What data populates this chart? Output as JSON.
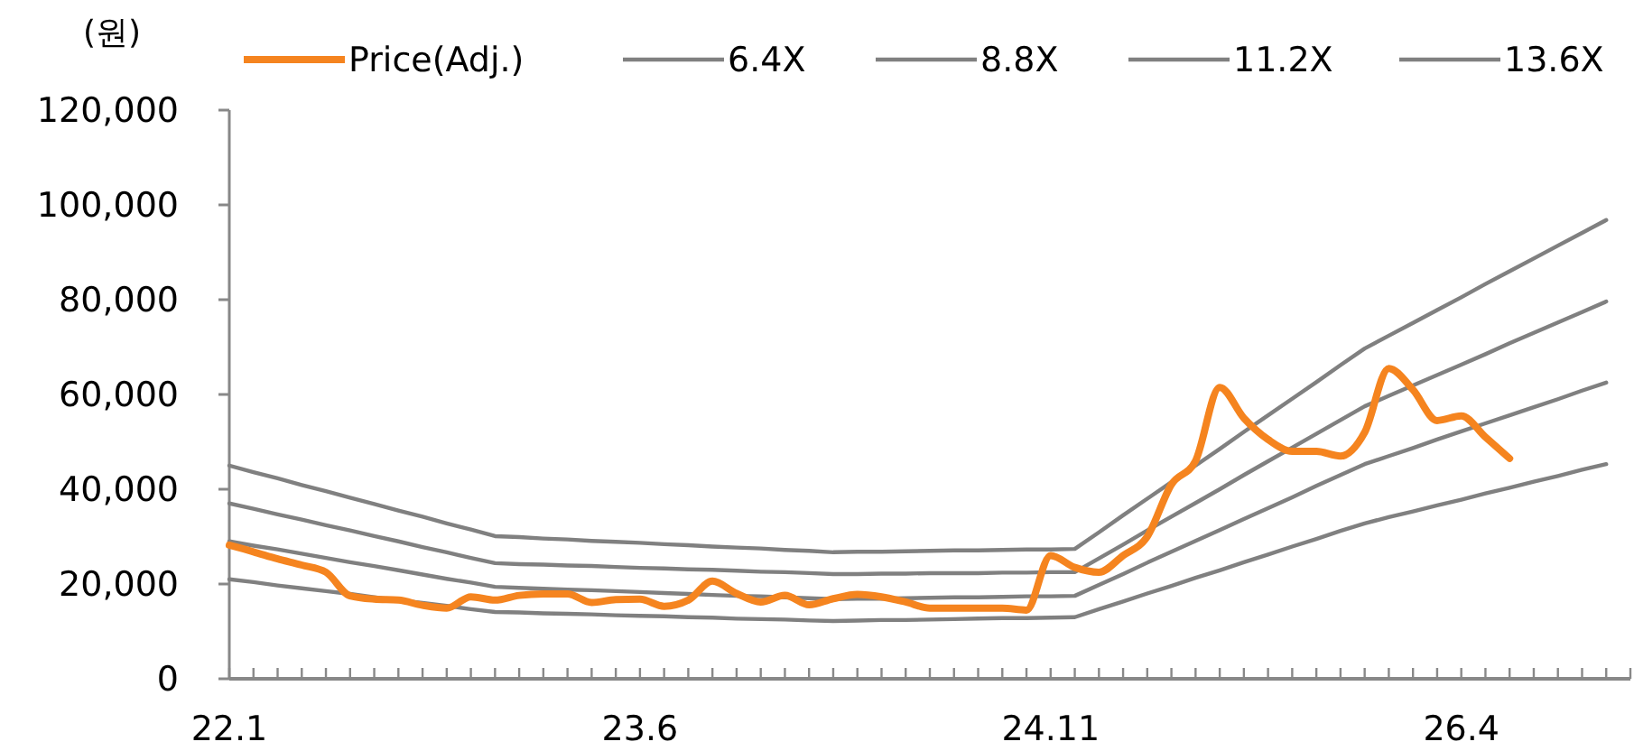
{
  "chart_data": {
    "type": "line",
    "ylabel": "(원)",
    "legend": "top",
    "grid": false,
    "categories": [
      "22.1",
      null,
      null,
      null,
      null,
      null,
      null,
      null,
      null,
      null,
      null,
      null,
      null,
      null,
      null,
      null,
      null,
      "23.6",
      null,
      null,
      null,
      null,
      null,
      null,
      null,
      null,
      null,
      null,
      null,
      null,
      null,
      null,
      null,
      null,
      "24.11",
      null,
      null,
      null,
      null,
      null,
      null,
      null,
      null,
      null,
      null,
      null,
      null,
      null,
      null,
      null,
      null,
      "26.4",
      null,
      null,
      null,
      null,
      null,
      null,
      null
    ],
    "ylim": [
      0,
      120000
    ],
    "yticks": [
      {
        "value": 0,
        "label": "0"
      },
      {
        "value": 20000,
        "label": "20,000"
      },
      {
        "value": 40000,
        "label": "40,000"
      },
      {
        "value": 60000,
        "label": "60,000"
      },
      {
        "value": 80000,
        "label": "80,000"
      },
      {
        "value": 100000,
        "label": "100,000"
      },
      {
        "value": 120000,
        "label": "120,000"
      }
    ],
    "series": [
      {
        "name": "Price(Adj.)",
        "color": "#f5841f",
        "values": [
          28200,
          26800,
          25300,
          24000,
          22500,
          17500,
          16800,
          16600,
          15500,
          14900,
          17300,
          16600,
          17600,
          17900,
          17900,
          16100,
          16700,
          16800,
          15300,
          16600,
          20600,
          18000,
          16200,
          17600,
          15600,
          16900,
          17800,
          17300,
          16200,
          14900,
          14900,
          14900,
          14900,
          14500,
          26000,
          23500,
          22500,
          26000,
          30000,
          41000,
          46000,
          61500,
          55000,
          50500,
          48000,
          48000,
          47000,
          52000,
          65500,
          61000,
          54500,
          55500,
          51000,
          46500,
          null,
          null,
          null,
          null,
          null
        ]
      },
      {
        "name": "6.4X",
        "color": "#808080",
        "values": [
          21000,
          20400,
          19700,
          19100,
          18500,
          17900,
          17200,
          16600,
          16000,
          15400,
          14700,
          14100,
          14000,
          13800,
          13700,
          13600,
          13400,
          13300,
          13200,
          13000,
          12900,
          12700,
          12600,
          12500,
          12300,
          12200,
          12300,
          12400,
          12400,
          12500,
          12600,
          12700,
          12800,
          12800,
          12900,
          13000,
          14700,
          16300,
          18000,
          19600,
          21300,
          22900,
          24600,
          26200,
          27900,
          29500,
          31200,
          32800,
          34100,
          35300,
          36600,
          37800,
          39100,
          40300,
          41600,
          42800,
          44100,
          45300,
          null
        ]
      },
      {
        "name": "8.8X",
        "color": "#808080",
        "values": [
          29000,
          28100,
          27300,
          26400,
          25500,
          24600,
          23800,
          22900,
          22000,
          21100,
          20300,
          19400,
          19200,
          19000,
          18800,
          18700,
          18500,
          18300,
          18100,
          17900,
          17700,
          17500,
          17400,
          17200,
          17000,
          16800,
          16900,
          16900,
          17000,
          17100,
          17200,
          17200,
          17300,
          17400,
          17400,
          17500,
          19800,
          22100,
          24500,
          26800,
          29100,
          31400,
          33700,
          36000,
          38300,
          40700,
          43000,
          45300,
          47000,
          48700,
          50500,
          52200,
          53900,
          55600,
          57300,
          59000,
          60800,
          62500,
          null
        ]
      },
      {
        "name": "11.2X",
        "color": "#808080",
        "values": [
          37000,
          35900,
          34700,
          33600,
          32400,
          31300,
          30100,
          29000,
          27800,
          26700,
          25500,
          24400,
          24200,
          24100,
          23900,
          23800,
          23600,
          23400,
          23300,
          23100,
          23000,
          22800,
          22600,
          22500,
          22300,
          22100,
          22100,
          22200,
          22200,
          22300,
          22300,
          22300,
          22400,
          22400,
          22500,
          22500,
          25400,
          28300,
          31300,
          34200,
          37100,
          40000,
          43000,
          45900,
          48800,
          51700,
          54600,
          57500,
          59700,
          61900,
          64100,
          66300,
          68500,
          70800,
          73000,
          75200,
          77400,
          79600,
          null
        ]
      },
      {
        "name": "13.6X",
        "color": "#808080",
        "values": [
          45000,
          43600,
          42300,
          40900,
          39600,
          38200,
          36900,
          35500,
          34200,
          32800,
          31500,
          30100,
          29900,
          29600,
          29400,
          29100,
          28900,
          28700,
          28400,
          28200,
          27900,
          27700,
          27500,
          27200,
          27000,
          26700,
          26800,
          26800,
          26900,
          27000,
          27100,
          27100,
          27200,
          27300,
          27300,
          27400,
          30900,
          34500,
          38000,
          41500,
          45000,
          48500,
          52100,
          55600,
          59100,
          62600,
          66200,
          69700,
          72400,
          75100,
          77800,
          80500,
          83300,
          86000,
          88700,
          91400,
          94100,
          96800,
          null
        ]
      }
    ]
  }
}
